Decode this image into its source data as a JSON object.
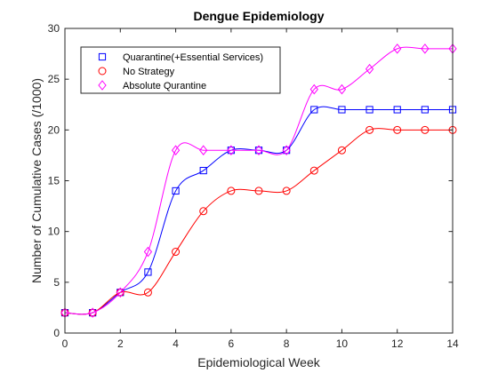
{
  "chart_data": {
    "type": "line",
    "title": "Dengue Epidemiology",
    "xlabel": "Epidemiological Week",
    "ylabel": "Number of Cumulative Cases (/1000)",
    "xlim": [
      0,
      14
    ],
    "ylim": [
      0,
      30
    ],
    "xticks": [
      0,
      2,
      4,
      6,
      8,
      10,
      12,
      14
    ],
    "yticks": [
      0,
      5,
      10,
      15,
      20,
      25,
      30
    ],
    "grid": false,
    "legend_position": "top-left",
    "x": [
      0,
      1,
      2,
      3,
      4,
      5,
      6,
      7,
      8,
      9,
      10,
      11,
      12,
      13,
      14
    ],
    "series": [
      {
        "name": "Quarantine(+Essential Services)",
        "marker": "square",
        "color": "#0000ff",
        "values": [
          2,
          2,
          4,
          6,
          14,
          16,
          18,
          18,
          18,
          22,
          22,
          22,
          22,
          22,
          22
        ]
      },
      {
        "name": "No Strategy",
        "marker": "circle",
        "color": "#ff0000",
        "values": [
          2,
          2,
          4,
          4,
          8,
          12,
          14,
          14,
          14,
          16,
          18,
          20,
          20,
          20,
          20
        ]
      },
      {
        "name": "Absolute Qurantine",
        "marker": "diamond",
        "color": "#ff00ff",
        "values": [
          2,
          2,
          4,
          8,
          18,
          18,
          18,
          18,
          18,
          24,
          24,
          26,
          28,
          28,
          28
        ]
      }
    ]
  }
}
